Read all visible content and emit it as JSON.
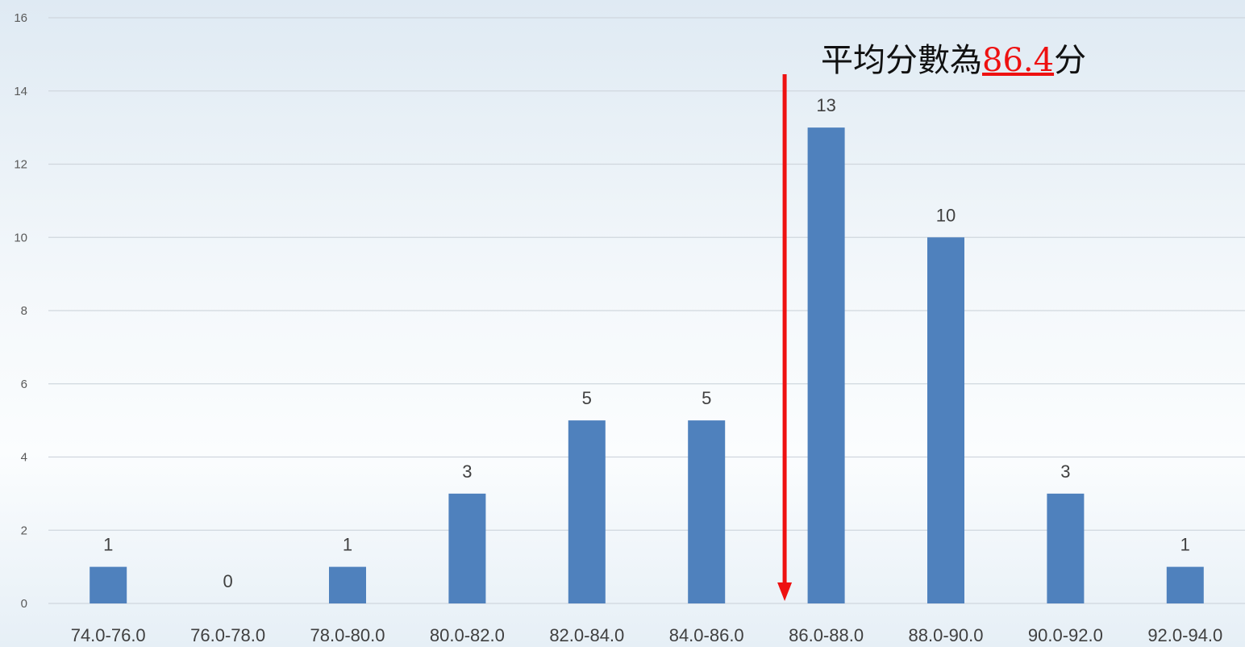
{
  "chart_data": {
    "type": "bar",
    "categories": [
      "74.0-76.0",
      "76.0-78.0",
      "78.0-80.0",
      "80.0-82.0",
      "82.0-84.0",
      "84.0-86.0",
      "86.0-88.0",
      "88.0-90.0",
      "90.0-92.0",
      "92.0-94.0"
    ],
    "values": [
      1,
      0,
      1,
      3,
      5,
      5,
      13,
      10,
      3,
      1
    ],
    "title": "",
    "xlabel": "",
    "ylabel": "",
    "ylim": [
      0,
      16
    ],
    "yticks": [
      0,
      2,
      4,
      6,
      8,
      10,
      12,
      14,
      16
    ],
    "grid": true,
    "bar_color": "#4f81bd",
    "annotation": {
      "prefix": "平均分數為",
      "value": "86.4",
      "suffix": "分",
      "value_color": "#ee1111",
      "arrow_color": "#ee1111",
      "arrow_x": 86.4
    }
  }
}
